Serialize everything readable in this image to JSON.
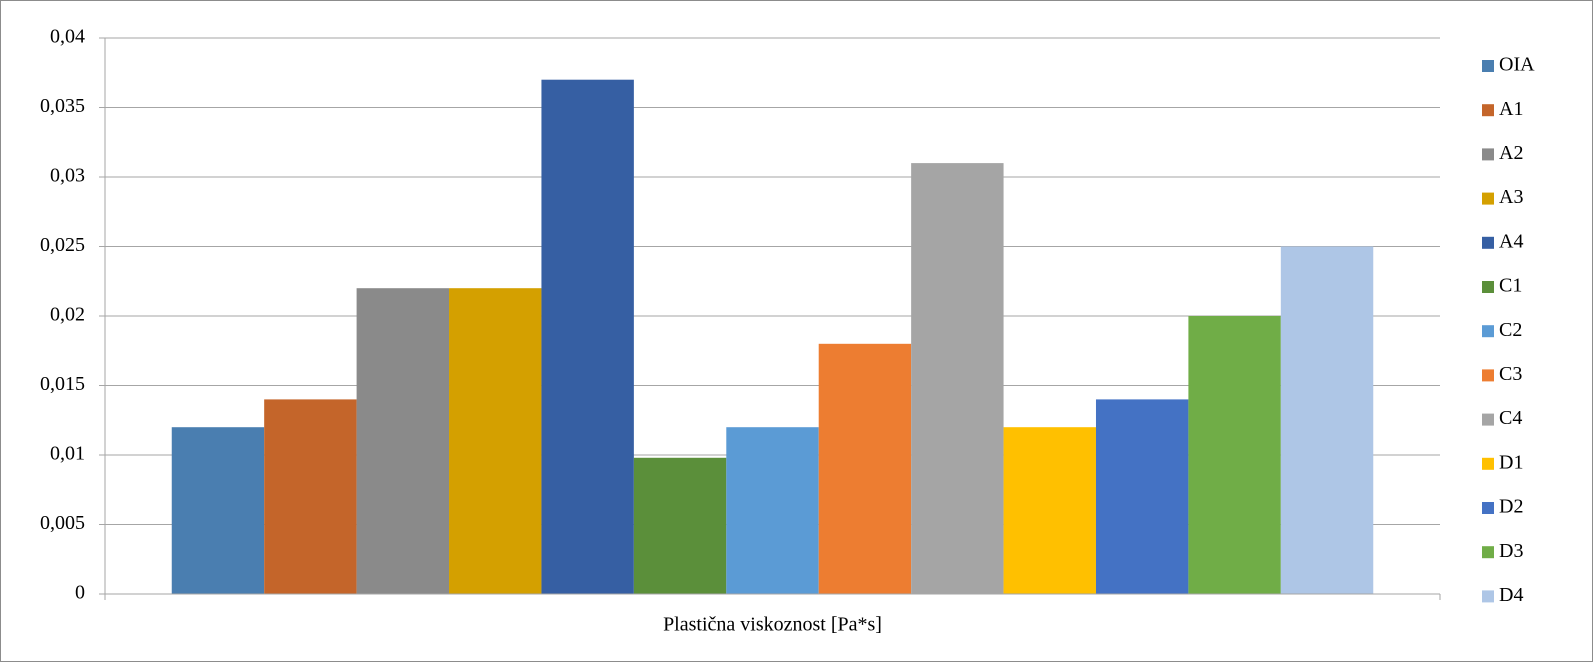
{
  "chart_data": {
    "type": "bar",
    "categories": [
      "Plastična viskoznost [Pa*s]"
    ],
    "series": [
      {
        "name": "OIA",
        "color": "#4a7eb0",
        "values": [
          0.012
        ]
      },
      {
        "name": "A1",
        "color": "#c4652a",
        "values": [
          0.014
        ]
      },
      {
        "name": "A2",
        "color": "#8a8a8a",
        "values": [
          0.022
        ]
      },
      {
        "name": "A3",
        "color": "#d4a000",
        "values": [
          0.022
        ]
      },
      {
        "name": "A4",
        "color": "#365fa3",
        "values": [
          0.037
        ]
      },
      {
        "name": "C1",
        "color": "#5b8f3a",
        "values": [
          0.0098
        ]
      },
      {
        "name": "C2",
        "color": "#5b9bd5",
        "values": [
          0.012
        ]
      },
      {
        "name": "C3",
        "color": "#ed7d31",
        "values": [
          0.018
        ]
      },
      {
        "name": "C4",
        "color": "#a5a5a5",
        "values": [
          0.031
        ]
      },
      {
        "name": "D1",
        "color": "#ffc000",
        "values": [
          0.012
        ]
      },
      {
        "name": "D2",
        "color": "#4472c4",
        "values": [
          0.014
        ]
      },
      {
        "name": "D3",
        "color": "#70ad47",
        "values": [
          0.02
        ]
      },
      {
        "name": "D4",
        "color": "#aec6e6",
        "values": [
          0.025
        ]
      }
    ],
    "ylim": [
      0,
      0.04
    ],
    "yticks": [
      0,
      {
        "value": 0.005,
        "label": "0,005"
      },
      {
        "value": 0.01,
        "label": "0,01"
      },
      {
        "value": 0.015,
        "label": "0,015"
      },
      {
        "value": 0.02,
        "label": "0,02"
      },
      {
        "value": 0.025,
        "label": "0,025"
      },
      {
        "value": 0.03,
        "label": "0,03"
      },
      {
        "value": 0.035,
        "label": "0,035"
      },
      {
        "value": 0.04,
        "label": "0,04"
      }
    ],
    "grid": true,
    "legend": "right"
  }
}
